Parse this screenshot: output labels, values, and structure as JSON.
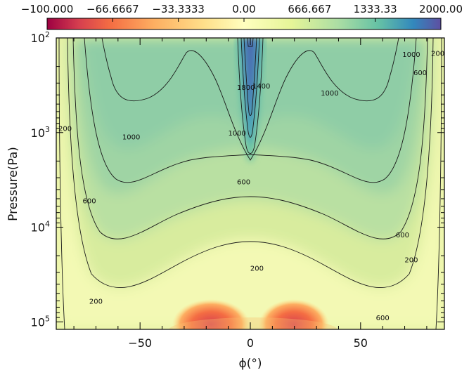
{
  "chart_data": {
    "type": "heatmap",
    "title": "",
    "xlabel": "ϕ(°)",
    "ylabel": "Pressure(Pa)",
    "x_range": [
      -88,
      88
    ],
    "y_range_pa": [
      100,
      120000
    ],
    "y_scale": "log",
    "x_ticks": [
      {
        "value": -50,
        "label": "−50"
      },
      {
        "value": 0,
        "label": "0"
      },
      {
        "value": 50,
        "label": "50"
      }
    ],
    "y_ticks": [
      {
        "value": 100,
        "base": "10",
        "exp": "2"
      },
      {
        "value": 1000,
        "base": "10",
        "exp": "3"
      },
      {
        "value": 10000,
        "base": "10",
        "exp": "4"
      },
      {
        "value": 100000,
        "base": "10",
        "exp": "5"
      }
    ],
    "colorbar": {
      "placement": "top",
      "min": -100,
      "max": 2000,
      "tick_labels": [
        "−100.000",
        "−66.6667",
        "−33.3333",
        "0.00",
        "666.667",
        "1333.33",
        "2000.00"
      ],
      "colormap": "Spectral (red → yellow → green → blue)"
    },
    "contour_levels": [
      200,
      600,
      1000,
      1400,
      1800
    ],
    "contour_labels": [
      {
        "text": "200",
        "lat": -84,
        "p": 900
      },
      {
        "text": "200",
        "lat": -70,
        "p": 60000
      },
      {
        "text": "200",
        "lat": 3,
        "p": 27000
      },
      {
        "text": "200",
        "lat": 73,
        "p": 22000
      },
      {
        "text": "200",
        "lat": 85,
        "p": 145
      },
      {
        "text": "600",
        "lat": -73,
        "p": 5200
      },
      {
        "text": "600",
        "lat": -3,
        "p": 3300
      },
      {
        "text": "600",
        "lat": 60,
        "p": 90000
      },
      {
        "text": "600",
        "lat": 69,
        "p": 12000
      },
      {
        "text": "600",
        "lat": 77,
        "p": 230
      },
      {
        "text": "1000",
        "lat": -54,
        "p": 1100
      },
      {
        "text": "1000",
        "lat": -6,
        "p": 1000
      },
      {
        "text": "1000",
        "lat": 36,
        "p": 380
      },
      {
        "text": "1000",
        "lat": 73,
        "p": 148
      },
      {
        "text": "1400",
        "lat": 5,
        "p": 320
      },
      {
        "text": "1800",
        "lat": -2,
        "p": 330
      }
    ]
  }
}
